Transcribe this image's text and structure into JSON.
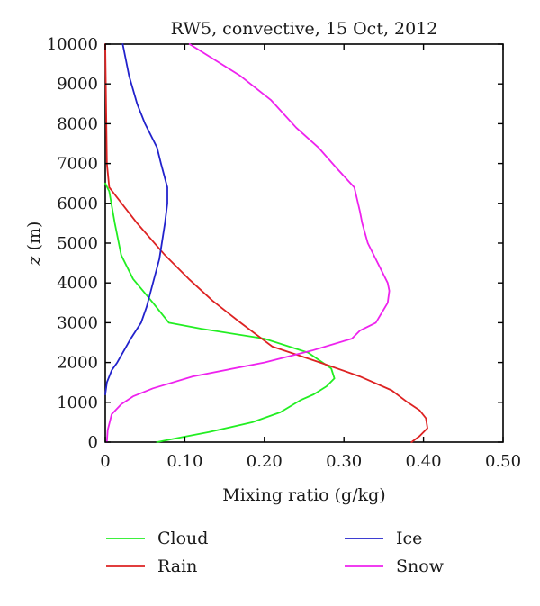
{
  "chart_data": {
    "type": "line",
    "title": "RW5, convective, 15 Oct, 2012",
    "xlabel": "Mixing ratio (g/kg)",
    "ylabel": "z (m)",
    "ylabel_var": "z",
    "ylabel_unit": " (m)",
    "xlim": [
      0,
      0.5
    ],
    "ylim": [
      0,
      10000
    ],
    "xticks": [
      0,
      0.1,
      0.2,
      0.3,
      0.4,
      0.5
    ],
    "xtick_labels": [
      "0",
      "0.10",
      "0.20",
      "0.30",
      "0.40",
      "0.50"
    ],
    "yticks": [
      0,
      1000,
      2000,
      3000,
      4000,
      5000,
      6000,
      7000,
      8000,
      9000,
      10000
    ],
    "ytick_labels": [
      "0",
      "1000",
      "2000",
      "3000",
      "4000",
      "5000",
      "6000",
      "7000",
      "8000",
      "9000",
      "10000"
    ],
    "grid": false,
    "legend_position": "bottom",
    "series": [
      {
        "name": "Cloud",
        "color": "#22ee22",
        "points": [
          [
            0.065,
            0
          ],
          [
            0.09,
            100
          ],
          [
            0.13,
            250
          ],
          [
            0.185,
            500
          ],
          [
            0.22,
            750
          ],
          [
            0.245,
            1050
          ],
          [
            0.262,
            1200
          ],
          [
            0.278,
            1400
          ],
          [
            0.288,
            1600
          ],
          [
            0.284,
            1850
          ],
          [
            0.255,
            2250
          ],
          [
            0.2,
            2600
          ],
          [
            0.12,
            2850
          ],
          [
            0.08,
            3000
          ],
          [
            0.06,
            3500
          ],
          [
            0.035,
            4100
          ],
          [
            0.02,
            4700
          ],
          [
            0.012,
            5500
          ],
          [
            0.005,
            6300
          ],
          [
            0,
            6500
          ]
        ]
      },
      {
        "name": "Rain",
        "color": "#dd2222",
        "points": [
          [
            0.385,
            0
          ],
          [
            0.395,
            150
          ],
          [
            0.405,
            350
          ],
          [
            0.403,
            600
          ],
          [
            0.395,
            800
          ],
          [
            0.38,
            1000
          ],
          [
            0.36,
            1300
          ],
          [
            0.32,
            1650
          ],
          [
            0.27,
            2000
          ],
          [
            0.21,
            2400
          ],
          [
            0.17,
            3000
          ],
          [
            0.135,
            3550
          ],
          [
            0.105,
            4100
          ],
          [
            0.075,
            4700
          ],
          [
            0.04,
            5500
          ],
          [
            0.005,
            6400
          ],
          [
            0.002,
            7000
          ],
          [
            0,
            10000
          ]
        ]
      },
      {
        "name": "Ice",
        "color": "#2222cc",
        "points": [
          [
            0,
            1200
          ],
          [
            0.002,
            1500
          ],
          [
            0.008,
            1800
          ],
          [
            0.015,
            2000
          ],
          [
            0.032,
            2600
          ],
          [
            0.045,
            3000
          ],
          [
            0.052,
            3400
          ],
          [
            0.06,
            4000
          ],
          [
            0.068,
            4600
          ],
          [
            0.075,
            5500
          ],
          [
            0.078,
            6000
          ],
          [
            0.078,
            6400
          ],
          [
            0.07,
            7000
          ],
          [
            0.065,
            7400
          ],
          [
            0.05,
            8000
          ],
          [
            0.04,
            8500
          ],
          [
            0.03,
            9200
          ],
          [
            0.022,
            10000
          ]
        ]
      },
      {
        "name": "Snow",
        "color": "#ee22ee",
        "points": [
          [
            0.002,
            0
          ],
          [
            0.003,
            300
          ],
          [
            0.008,
            700
          ],
          [
            0.02,
            950
          ],
          [
            0.035,
            1150
          ],
          [
            0.06,
            1350
          ],
          [
            0.11,
            1650
          ],
          [
            0.2,
            2000
          ],
          [
            0.26,
            2300
          ],
          [
            0.31,
            2600
          ],
          [
            0.32,
            2800
          ],
          [
            0.34,
            3000
          ],
          [
            0.355,
            3500
          ],
          [
            0.357,
            3800
          ],
          [
            0.355,
            4000
          ],
          [
            0.33,
            5000
          ],
          [
            0.323,
            5500
          ],
          [
            0.32,
            5800
          ],
          [
            0.313,
            6400
          ],
          [
            0.29,
            6900
          ],
          [
            0.268,
            7400
          ],
          [
            0.24,
            7900
          ],
          [
            0.208,
            8600
          ],
          [
            0.17,
            9200
          ],
          [
            0.106,
            10000
          ]
        ]
      }
    ]
  }
}
